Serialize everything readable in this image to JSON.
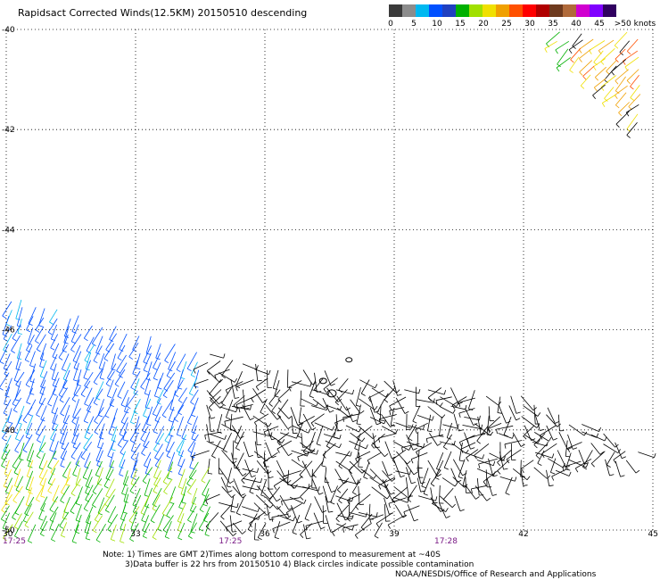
{
  "title": "Rapidsact Corrected Winds(12.5KM) 20150510 descending",
  "legend": {
    "colors": [
      "#3a3a3a",
      "#8c8c8c",
      "#00b8f0",
      "#0050ff",
      "#2040c0",
      "#00b000",
      "#a0e000",
      "#f0e000",
      "#f0a000",
      "#ff5000",
      "#ff0000",
      "#b00000",
      "#6e3a1e",
      "#b06a3a",
      "#d000d0",
      "#8000ff",
      "#300060"
    ],
    "ticks": [
      "0",
      "5",
      "10",
      "15",
      "20",
      "25",
      "30",
      "35",
      "40",
      "45",
      ">50 knots"
    ]
  },
  "chart_data": {
    "type": "wind_barbs",
    "title": "Rapidsact Corrected Winds(12.5KM) 20150510 descending",
    "xlim": [
      30,
      45
    ],
    "ylim": [
      -50,
      -40
    ],
    "x_ticks": [
      "30",
      "33",
      "36",
      "39",
      "42",
      "45"
    ],
    "y_ticks": [
      "-40",
      "-42",
      "-44",
      "-46",
      "-48",
      "-50"
    ],
    "time_labels": [
      {
        "x": 30,
        "label": "17:25"
      },
      {
        "x": 35.2,
        "label": "17:25"
      },
      {
        "x": 40.2,
        "label": "17:28"
      }
    ],
    "grid": true,
    "units": "knots",
    "regions": [
      {
        "name": "northeast swath",
        "lon": [
          42.5,
          45
        ],
        "lat": [
          -40,
          -42
        ],
        "speed_knots": [
          20,
          40
        ],
        "dominant_color": "#f0a000"
      },
      {
        "name": "western swath blue",
        "lon": [
          30,
          34.5
        ],
        "lat": [
          -45.3,
          -48.5
        ],
        "speed_knots": [
          10,
          18
        ],
        "dominant_color": "#0050ff"
      },
      {
        "name": "western swath green",
        "lon": [
          30,
          34.8
        ],
        "lat": [
          -47.8,
          -50
        ],
        "speed_knots": [
          15,
          22
        ],
        "dominant_color": "#00b000"
      },
      {
        "name": "western swath yellow",
        "lon": [
          30,
          31.5
        ],
        "lat": [
          -48.5,
          -49.3
        ],
        "speed_knots": [
          20,
          25
        ],
        "dominant_color": "#f0e000"
      },
      {
        "name": "central and eastern swath",
        "lon": [
          34.2,
          45
        ],
        "lat": [
          -46.5,
          -50
        ],
        "speed_knots": [
          0,
          5
        ],
        "dominant_color": "#000000"
      }
    ]
  },
  "notes": {
    "line1": "Note: 1) Times are GMT 2)Times along bottom correspond to measurement at ~40S",
    "line2": "3)Data buffer is 22 hrs from 20150510 4) Black circles indicate possible contamination",
    "line3": "NOAA/NESDIS/Office of Research and Applications"
  }
}
